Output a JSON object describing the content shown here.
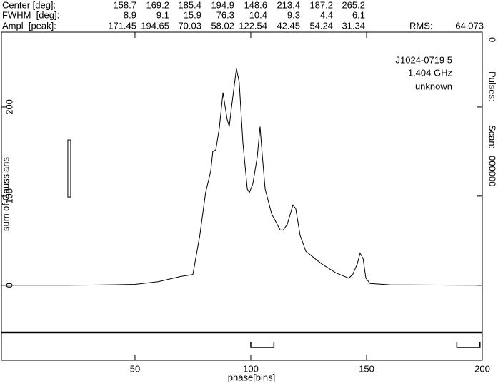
{
  "header": {
    "rows": [
      {
        "label": "Center [deg]:",
        "values": [
          158.7,
          169.2,
          185.4,
          194.9,
          148.6,
          213.4,
          187.2,
          265.2
        ]
      },
      {
        "label": "FWHM  [deg]:",
        "values": [
          8.9,
          9.1,
          15.9,
          76.3,
          10.4,
          9.3,
          4.4,
          6.1
        ]
      },
      {
        "label": "Ampl  [peak]:",
        "values": [
          171.45,
          194.65,
          70.03,
          58.02,
          122.54,
          42.45,
          54.24,
          31.34
        ]
      }
    ],
    "rms_label": "RMS:",
    "rms": 64.073
  },
  "chart_data": {
    "type": "line",
    "xlabel": "phase[bins]",
    "ylabel": "sum of Gaussians",
    "annotations": [
      "J1024-0719 5",
      "1.404 GHz",
      "unknown"
    ],
    "right_labels": {
      "pulses_label": "Pulses:",
      "pulses": 0,
      "scan_label": "Scan:",
      "scan": "000000"
    },
    "color": "#000000",
    "x": [
      -7.7,
      20,
      40,
      50,
      60,
      70,
      75,
      78,
      80.5,
      82.7,
      83.6,
      84.9,
      86.4,
      88,
      89.8,
      90.7,
      91.7,
      93.8,
      95,
      96.6,
      98.5,
      99.4,
      100.9,
      102.8,
      104,
      104.9,
      106.2,
      109,
      112.7,
      114,
      115.7,
      118.2,
      119.4,
      121.3,
      123.8,
      130.6,
      136.7,
      142.3,
      144,
      146,
      147.2,
      148.5,
      149.7,
      151.5,
      160,
      200
    ],
    "values": [
      0,
      0,
      0.5,
      1,
      4,
      10,
      12,
      56,
      104,
      128,
      150,
      152,
      176,
      216,
      186,
      178,
      200,
      243,
      228,
      160,
      108,
      104,
      114,
      144,
      178,
      148,
      108,
      80,
      62,
      62,
      68,
      90,
      86,
      56,
      38,
      24,
      14,
      8,
      12,
      24,
      36,
      30,
      8,
      2,
      0.5,
      0
    ],
    "regions": [
      [
        100,
        110
      ],
      [
        189,
        199
      ]
    ],
    "xlim": [
      -7.7,
      200
    ],
    "ylim": [
      -53,
      284
    ],
    "xticks": [
      50,
      100,
      150,
      200
    ],
    "yticks": [
      0,
      100,
      200
    ]
  }
}
